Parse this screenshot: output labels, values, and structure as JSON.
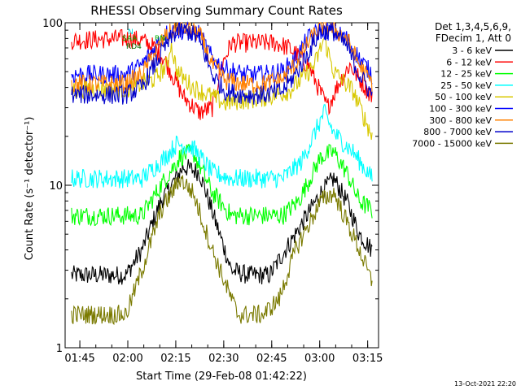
{
  "chart_data": {
    "type": "line",
    "title": "RHESSI Observing Summary Count Rates",
    "xlabel": "Start Time (29-Feb-08 01:42:22)",
    "ylabel": "Count Rate (s⁻¹ detector⁻¹)",
    "y_scale": "log",
    "ylim": [
      1,
      100
    ],
    "y_ticks": [
      1,
      10,
      100
    ],
    "y_tick_labels": [
      "1",
      "10",
      "100"
    ],
    "x_unit": "minutes since 01:42:22",
    "xlim": [
      -2,
      96
    ],
    "x_tick_labels": [
      "01:45",
      "02:00",
      "02:15",
      "02:30",
      "02:45",
      "03:00",
      "03:15"
    ],
    "x_tick_values": [
      2.6,
      17.6,
      32.6,
      47.6,
      62.6,
      77.6,
      92.6
    ],
    "timestamp": "13-Oct-2021 22:20",
    "legend": {
      "position": "right",
      "header_line1": "Det 1,3,4,5,6,9,",
      "header_line2": "FDecim 1, Att 0"
    },
    "flags": [
      {
        "label": "N",
        "color": "#00e0e0"
      },
      {
        "label": "SAA",
        "color": "#00b000"
      },
      {
        "label": "RN",
        "color": "#00b000"
      },
      {
        "label": "RD4",
        "color": "#007000"
      }
    ],
    "series": [
      {
        "name": "3 - 6 keV",
        "color": "#000000",
        "points": [
          [
            0,
            2.8
          ],
          [
            12,
            2.8
          ],
          [
            17,
            2.8
          ],
          [
            22,
            4
          ],
          [
            28,
            8
          ],
          [
            35,
            13
          ],
          [
            40,
            12
          ],
          [
            45,
            6
          ],
          [
            50,
            3
          ],
          [
            55,
            2.8
          ],
          [
            62,
            2.8
          ],
          [
            65,
            3.5
          ],
          [
            70,
            5
          ],
          [
            78,
            9
          ],
          [
            82,
            11
          ],
          [
            86,
            8
          ],
          [
            90,
            5
          ],
          [
            94,
            4
          ]
        ]
      },
      {
        "name": "6 - 12 keV",
        "color": "#ff0000",
        "points": [
          [
            0,
            78
          ],
          [
            17,
            80
          ],
          [
            22,
            78
          ],
          [
            26,
            70
          ],
          [
            29,
            60
          ],
          [
            35,
            35
          ],
          [
            40,
            28
          ],
          [
            44,
            30
          ],
          [
            47,
            55
          ],
          [
            50,
            75
          ],
          [
            58,
            75
          ],
          [
            64,
            75
          ],
          [
            68,
            70
          ],
          [
            74,
            55
          ],
          [
            80,
            30
          ],
          [
            84,
            44
          ],
          [
            87,
            55
          ],
          [
            90,
            45
          ],
          [
            94,
            35
          ]
        ]
      },
      {
        "name": "12 - 25 keV",
        "color": "#00ff00",
        "points": [
          [
            0,
            6.5
          ],
          [
            17,
            6.5
          ],
          [
            22,
            6.5
          ],
          [
            28,
            10
          ],
          [
            34,
            15
          ],
          [
            38,
            16
          ],
          [
            44,
            9
          ],
          [
            50,
            6.5
          ],
          [
            58,
            6.5
          ],
          [
            66,
            6.5
          ],
          [
            71,
            8
          ],
          [
            78,
            15
          ],
          [
            82,
            16
          ],
          [
            86,
            12
          ],
          [
            90,
            8
          ],
          [
            94,
            7
          ]
        ]
      },
      {
        "name": "25 - 50 keV",
        "color": "#00ffff",
        "points": [
          [
            0,
            11
          ],
          [
            17,
            11
          ],
          [
            22,
            11
          ],
          [
            28,
            14
          ],
          [
            33,
            18
          ],
          [
            38,
            17
          ],
          [
            44,
            12
          ],
          [
            50,
            11
          ],
          [
            60,
            11
          ],
          [
            66,
            11
          ],
          [
            72,
            14
          ],
          [
            79,
            28
          ],
          [
            82,
            21
          ],
          [
            88,
            16
          ],
          [
            94,
            11
          ]
        ]
      },
      {
        "name": "50 - 100 keV",
        "color": "#d8c800",
        "points": [
          [
            0,
            39
          ],
          [
            17,
            39
          ],
          [
            20,
            41
          ],
          [
            23,
            43
          ],
          [
            26,
            45
          ],
          [
            28,
            50
          ],
          [
            30,
            55
          ],
          [
            31,
            75
          ],
          [
            33,
            50
          ],
          [
            38,
            40
          ],
          [
            44,
            35
          ],
          [
            48,
            32
          ],
          [
            52,
            33
          ],
          [
            58,
            34
          ],
          [
            64,
            36
          ],
          [
            68,
            38
          ],
          [
            72,
            45
          ],
          [
            76,
            55
          ],
          [
            79,
            80
          ],
          [
            82,
            50
          ],
          [
            88,
            38
          ],
          [
            94,
            20
          ]
        ]
      },
      {
        "name": "100 - 300 keV",
        "color": "#0000ff",
        "points": [
          [
            0,
            48
          ],
          [
            17,
            48
          ],
          [
            22,
            55
          ],
          [
            26,
            70
          ],
          [
            29,
            85
          ],
          [
            33,
            90
          ],
          [
            37,
            88
          ],
          [
            40,
            85
          ],
          [
            44,
            60
          ],
          [
            48,
            52
          ],
          [
            54,
            48
          ],
          [
            60,
            48
          ],
          [
            66,
            50
          ],
          [
            70,
            60
          ],
          [
            74,
            80
          ],
          [
            78,
            90
          ],
          [
            82,
            88
          ],
          [
            86,
            80
          ],
          [
            90,
            60
          ],
          [
            94,
            48
          ]
        ]
      },
      {
        "name": "300 - 800 keV",
        "color": "#ff8000",
        "points": [
          [
            0,
            42
          ],
          [
            17,
            42
          ],
          [
            22,
            48
          ],
          [
            26,
            65
          ],
          [
            29,
            80
          ],
          [
            33,
            95
          ],
          [
            37,
            92
          ],
          [
            40,
            85
          ],
          [
            44,
            55
          ],
          [
            48,
            44
          ],
          [
            54,
            42
          ],
          [
            60,
            42
          ],
          [
            66,
            45
          ],
          [
            70,
            55
          ],
          [
            74,
            75
          ],
          [
            78,
            95
          ],
          [
            82,
            92
          ],
          [
            86,
            80
          ],
          [
            90,
            55
          ],
          [
            94,
            42
          ]
        ]
      },
      {
        "name": "800 - 7000 keV",
        "color": "#0000cc",
        "points": [
          [
            0,
            36
          ],
          [
            17,
            36
          ],
          [
            22,
            40
          ],
          [
            26,
            55
          ],
          [
            29,
            70
          ],
          [
            33,
            90
          ],
          [
            37,
            88
          ],
          [
            40,
            78
          ],
          [
            44,
            48
          ],
          [
            48,
            38
          ],
          [
            54,
            36
          ],
          [
            60,
            36
          ],
          [
            66,
            38
          ],
          [
            70,
            48
          ],
          [
            74,
            65
          ],
          [
            78,
            90
          ],
          [
            82,
            88
          ],
          [
            86,
            72
          ],
          [
            90,
            48
          ],
          [
            94,
            36
          ]
        ]
      },
      {
        "name": "7000 - 15000 keV",
        "color": "#7a7a00",
        "points": [
          [
            0,
            1.6
          ],
          [
            17,
            1.6
          ],
          [
            18,
            1.8
          ],
          [
            22,
            3
          ],
          [
            28,
            7
          ],
          [
            34,
            11
          ],
          [
            38,
            9
          ],
          [
            44,
            4
          ],
          [
            48,
            2.5
          ],
          [
            52,
            1.6
          ],
          [
            60,
            1.6
          ],
          [
            65,
            2
          ],
          [
            70,
            4
          ],
          [
            78,
            8
          ],
          [
            82,
            9
          ],
          [
            86,
            6
          ],
          [
            90,
            4
          ],
          [
            94,
            2.5
          ]
        ]
      }
    ]
  }
}
